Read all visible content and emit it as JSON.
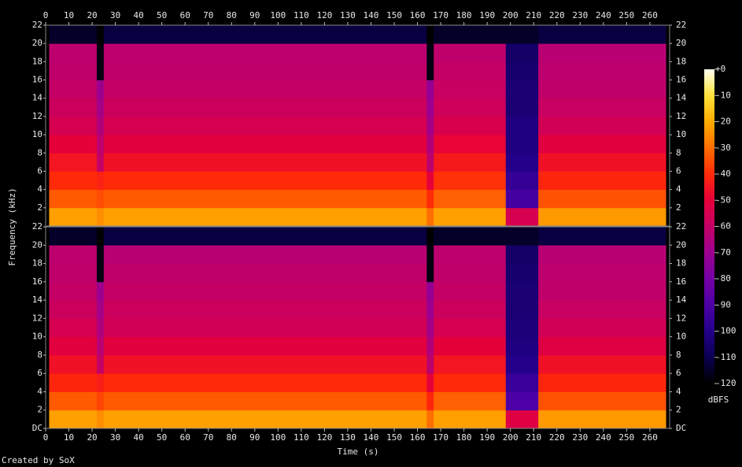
{
  "chart_data": [
    {
      "type": "spectrogram",
      "x": [
        0,
        1.5,
        22,
        25,
        164,
        167,
        198,
        212,
        267,
        268.5
      ],
      "y": [
        0,
        2,
        4,
        6,
        8,
        10,
        12,
        14,
        16,
        18,
        20,
        22
      ],
      "xlim": [
        0,
        268.5
      ],
      "ylim": [
        0,
        22
      ],
      "xticks": [
        0,
        10,
        20,
        30,
        40,
        50,
        60,
        70,
        80,
        90,
        100,
        110,
        120,
        130,
        140,
        150,
        160,
        170,
        180,
        190,
        200,
        210,
        220,
        230,
        240,
        250,
        260
      ],
      "yticks": [
        2,
        4,
        6,
        8,
        10,
        12,
        14,
        16,
        18,
        20,
        22
      ],
      "xtick_side": "top",
      "values": [
        [
          -120,
          -120,
          -120,
          -120,
          -120,
          -120,
          -120,
          -120,
          -120,
          -120,
          -120
        ],
        [
          -22,
          -33,
          -40,
          -45,
          -50,
          -55,
          -58,
          -60,
          -61,
          -62,
          -115
        ],
        [
          -25,
          -35,
          -42,
          -60,
          -62,
          -65,
          -68,
          -70,
          -118,
          -118,
          -120
        ],
        [
          -22,
          -33,
          -40,
          -46,
          -51,
          -55,
          -58,
          -60,
          -61,
          -62,
          -112
        ],
        [
          -30,
          -40,
          -50,
          -62,
          -65,
          -68,
          -70,
          -72,
          -118,
          -118,
          -120
        ],
        [
          -22,
          -32,
          -39,
          -44,
          -49,
          -54,
          -57,
          -59,
          -60,
          -61,
          -115
        ],
        [
          -55,
          -92,
          -96,
          -100,
          -102,
          -102,
          -104,
          -104,
          -105,
          -106,
          -115
        ],
        [
          -23,
          -34,
          -41,
          -46,
          -51,
          -56,
          -59,
          -61,
          -62,
          -63,
          -112
        ],
        [
          -120,
          -120,
          -120,
          -120,
          -120,
          -120,
          -120,
          -120,
          -120,
          -120,
          -120
        ]
      ]
    },
    {
      "type": "spectrogram",
      "x": [
        0,
        1.5,
        22,
        25,
        164,
        167,
        198,
        212,
        267,
        268.5
      ],
      "y": [
        0,
        2,
        4,
        6,
        8,
        10,
        12,
        14,
        16,
        18,
        20,
        22
      ],
      "xlim": [
        0,
        268.5
      ],
      "ylim": [
        0,
        22
      ],
      "xticks": [
        0,
        10,
        20,
        30,
        40,
        50,
        60,
        70,
        80,
        90,
        100,
        110,
        120,
        130,
        140,
        150,
        160,
        170,
        180,
        190,
        200,
        210,
        220,
        230,
        240,
        250,
        260
      ],
      "yticks": [
        {
          "value": 0,
          "label": "DC"
        },
        2,
        4,
        6,
        8,
        10,
        12,
        14,
        16,
        18,
        20,
        22
      ],
      "xtick_side": "bottom",
      "values": [
        [
          -120,
          -120,
          -120,
          -120,
          -120,
          -120,
          -120,
          -120,
          -120,
          -120,
          -120
        ],
        [
          -22,
          -33,
          -41,
          -46,
          -51,
          -55,
          -58,
          -60,
          -61,
          -62,
          -115
        ],
        [
          -25,
          -36,
          -43,
          -60,
          -63,
          -66,
          -68,
          -70,
          -118,
          -118,
          -120
        ],
        [
          -22,
          -33,
          -40,
          -46,
          -51,
          -56,
          -58,
          -60,
          -61,
          -63,
          -112
        ],
        [
          -30,
          -41,
          -50,
          -62,
          -65,
          -68,
          -70,
          -72,
          -118,
          -118,
          -120
        ],
        [
          -22,
          -32,
          -40,
          -45,
          -50,
          -55,
          -58,
          -60,
          -61,
          -62,
          -115
        ],
        [
          -52,
          -90,
          -95,
          -100,
          -102,
          -103,
          -104,
          -104,
          -105,
          -106,
          -115
        ],
        [
          -23,
          -34,
          -41,
          -46,
          -52,
          -56,
          -59,
          -61,
          -62,
          -63,
          -112
        ],
        [
          -120,
          -120,
          -120,
          -120,
          -120,
          -120,
          -120,
          -120,
          -120,
          -120,
          -120
        ]
      ]
    }
  ],
  "x_label": "Time (s)",
  "y_label": "Frequency (kHz)",
  "colorbar": {
    "label": "dBFS",
    "clim": [
      -120,
      0
    ],
    "ticks": [
      {
        "value": 0,
        "label": "+0"
      },
      -10,
      -20,
      -30,
      -40,
      -50,
      -60,
      -70,
      -80,
      -90,
      -100,
      -110,
      -120
    ],
    "colors": [
      "#000000",
      "#0a0050",
      "#24008a",
      "#4c00a6",
      "#7400a4",
      "#9c0090",
      "#c40066",
      "#e6003a",
      "#ff2a08",
      "#ff6e00",
      "#ffac00",
      "#ffe23a",
      "#fffff0"
    ]
  },
  "credit": "Created by SoX"
}
